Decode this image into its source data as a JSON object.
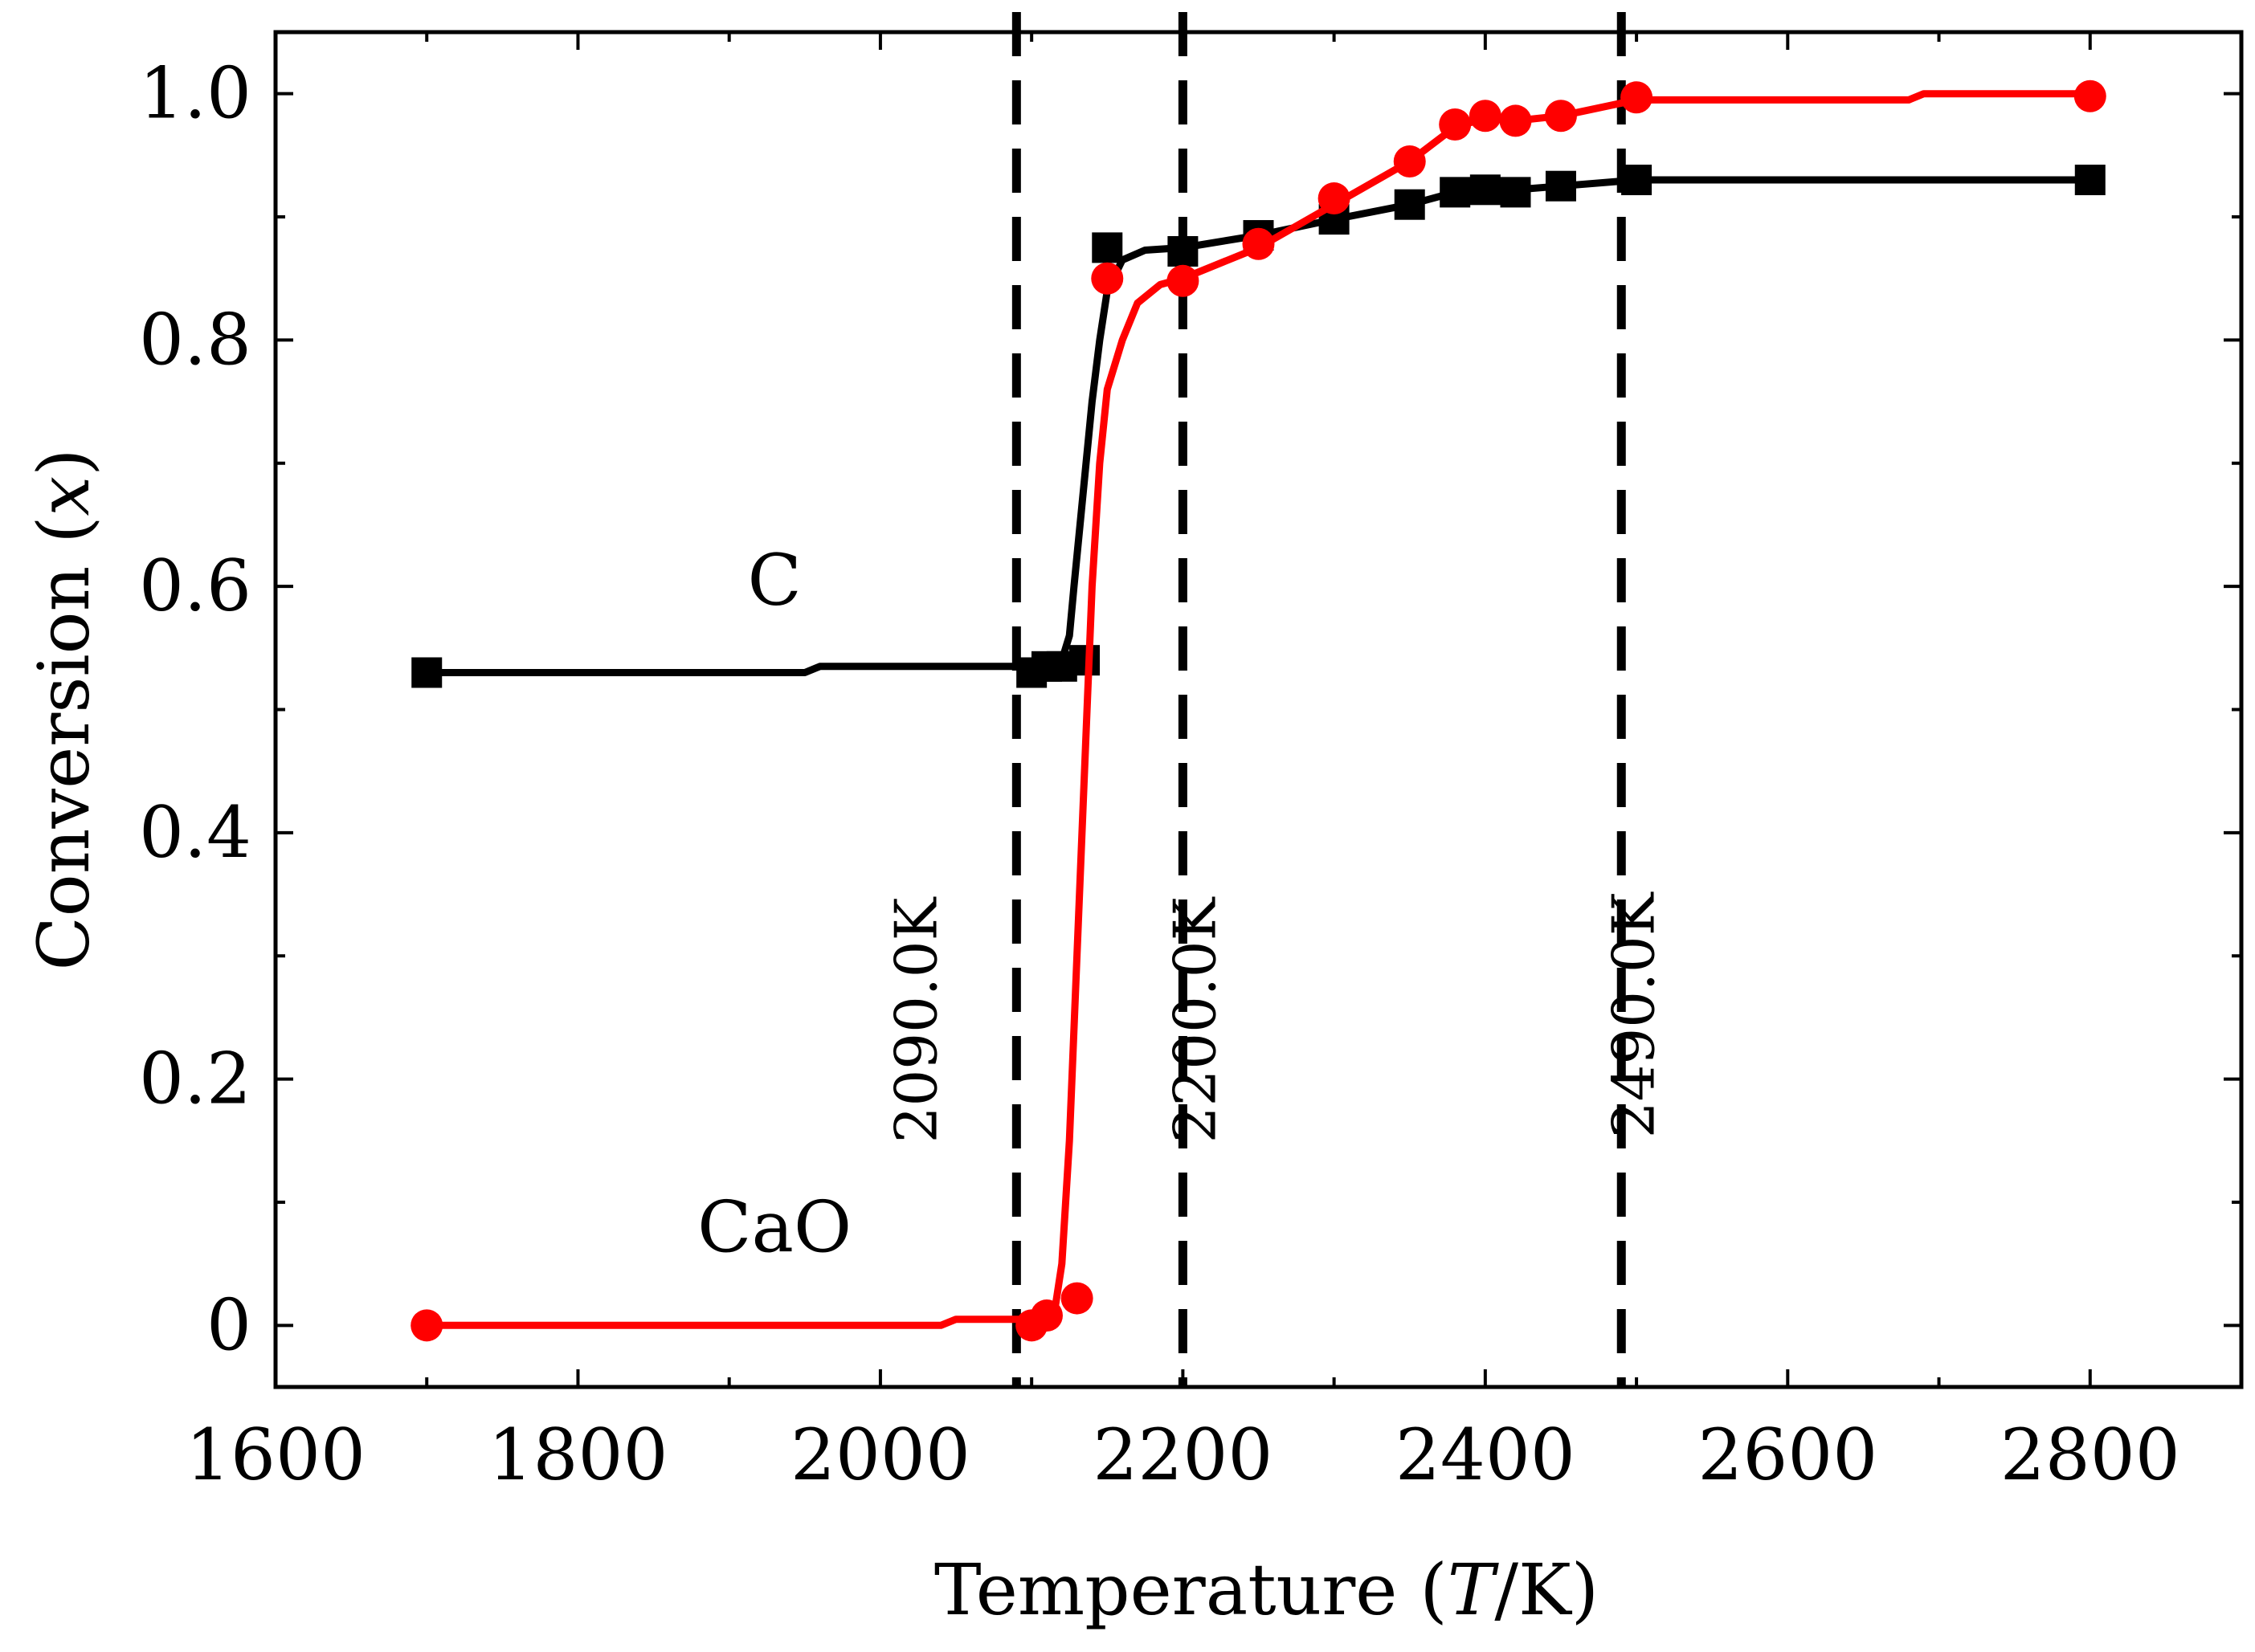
{
  "chart_data": {
    "type": "line",
    "xlabel_prefix": "Temperature (",
    "xlabel_italic": "T",
    "xlabel_suffix": "/K)",
    "ylabel_prefix": "Conversion (",
    "ylabel_italic": "x",
    "ylabel_suffix": ")",
    "xlim": [
      1600,
      2900
    ],
    "ylim": [
      -0.05,
      1.05
    ],
    "xticks": [
      1600,
      1800,
      2000,
      2200,
      2400,
      2600,
      2800
    ],
    "xtick_labels": [
      "1600",
      "1800",
      "2000",
      "2200",
      "2400",
      "2600",
      "2800"
    ],
    "yticks": [
      0,
      0.2,
      0.4,
      0.6,
      0.8,
      1.0
    ],
    "ytick_labels": [
      "0",
      "0.2",
      "0.4",
      "0.6",
      "0.8",
      "1.0"
    ],
    "grid": false,
    "legend": "none",
    "series": [
      {
        "name": "C",
        "color": "#000000",
        "marker": "square",
        "line": [
          [
            1700,
            0.53
          ],
          [
            1950,
            0.53
          ],
          [
            1960,
            0.535
          ],
          [
            2090,
            0.535
          ],
          [
            2110,
            0.535
          ],
          [
            2120,
            0.54
          ],
          [
            2125,
            0.56
          ],
          [
            2128,
            0.6
          ],
          [
            2132,
            0.65
          ],
          [
            2136,
            0.7
          ],
          [
            2140,
            0.75
          ],
          [
            2145,
            0.8
          ],
          [
            2150,
            0.84
          ],
          [
            2160,
            0.865
          ],
          [
            2175,
            0.873
          ],
          [
            2200,
            0.875
          ],
          [
            2250,
            0.885
          ],
          [
            2300,
            0.898
          ],
          [
            2350,
            0.91
          ],
          [
            2380,
            0.92
          ],
          [
            2400,
            0.922
          ],
          [
            2420,
            0.922
          ],
          [
            2450,
            0.925
          ],
          [
            2500,
            0.93
          ],
          [
            2800,
            0.93
          ]
        ],
        "markers": [
          [
            1700,
            0.53
          ],
          [
            2100,
            0.53
          ],
          [
            2110,
            0.535
          ],
          [
            2120,
            0.535
          ],
          [
            2135,
            0.54
          ],
          [
            2150,
            0.875
          ],
          [
            2200,
            0.872
          ],
          [
            2250,
            0.885
          ],
          [
            2300,
            0.898
          ],
          [
            2350,
            0.91
          ],
          [
            2380,
            0.92
          ],
          [
            2400,
            0.922
          ],
          [
            2420,
            0.92
          ],
          [
            2450,
            0.925
          ],
          [
            2500,
            0.93
          ],
          [
            2800,
            0.93
          ]
        ]
      },
      {
        "name": "CaO",
        "color": "#ff0000",
        "marker": "circle",
        "line": [
          [
            1700,
            0.0
          ],
          [
            2040,
            0.0
          ],
          [
            2050,
            0.005
          ],
          [
            2100,
            0.005
          ],
          [
            2115,
            0.01
          ],
          [
            2120,
            0.05
          ],
          [
            2125,
            0.15
          ],
          [
            2130,
            0.3
          ],
          [
            2135,
            0.45
          ],
          [
            2140,
            0.6
          ],
          [
            2145,
            0.7
          ],
          [
            2150,
            0.76
          ],
          [
            2160,
            0.8
          ],
          [
            2170,
            0.83
          ],
          [
            2185,
            0.845
          ],
          [
            2200,
            0.85
          ],
          [
            2250,
            0.875
          ],
          [
            2300,
            0.91
          ],
          [
            2350,
            0.945
          ],
          [
            2380,
            0.973
          ],
          [
            2400,
            0.98
          ],
          [
            2420,
            0.978
          ],
          [
            2450,
            0.982
          ],
          [
            2500,
            0.995
          ],
          [
            2680,
            0.995
          ],
          [
            2690,
            1.0
          ],
          [
            2800,
            1.0
          ]
        ],
        "markers": [
          [
            1700,
            0.0
          ],
          [
            2100,
            0.0
          ],
          [
            2110,
            0.008
          ],
          [
            2130,
            0.022
          ],
          [
            2150,
            0.85
          ],
          [
            2200,
            0.848
          ],
          [
            2250,
            0.878
          ],
          [
            2300,
            0.915
          ],
          [
            2350,
            0.945
          ],
          [
            2380,
            0.975
          ],
          [
            2400,
            0.982
          ],
          [
            2420,
            0.978
          ],
          [
            2450,
            0.982
          ],
          [
            2500,
            0.997
          ],
          [
            2800,
            0.998
          ]
        ]
      }
    ],
    "vlines": [
      {
        "x": 2090,
        "label": "2090.0K",
        "style": "dashed"
      },
      {
        "x": 2200,
        "label": "2200.0K",
        "style": "dashed"
      },
      {
        "x": 2490,
        "label": "2490.0K",
        "style": "dashed"
      }
    ],
    "annotations": [
      {
        "text": "C",
        "x": 1930,
        "y": 0.585
      },
      {
        "text": "CaO",
        "x": 1930,
        "y": 0.06
      }
    ]
  }
}
